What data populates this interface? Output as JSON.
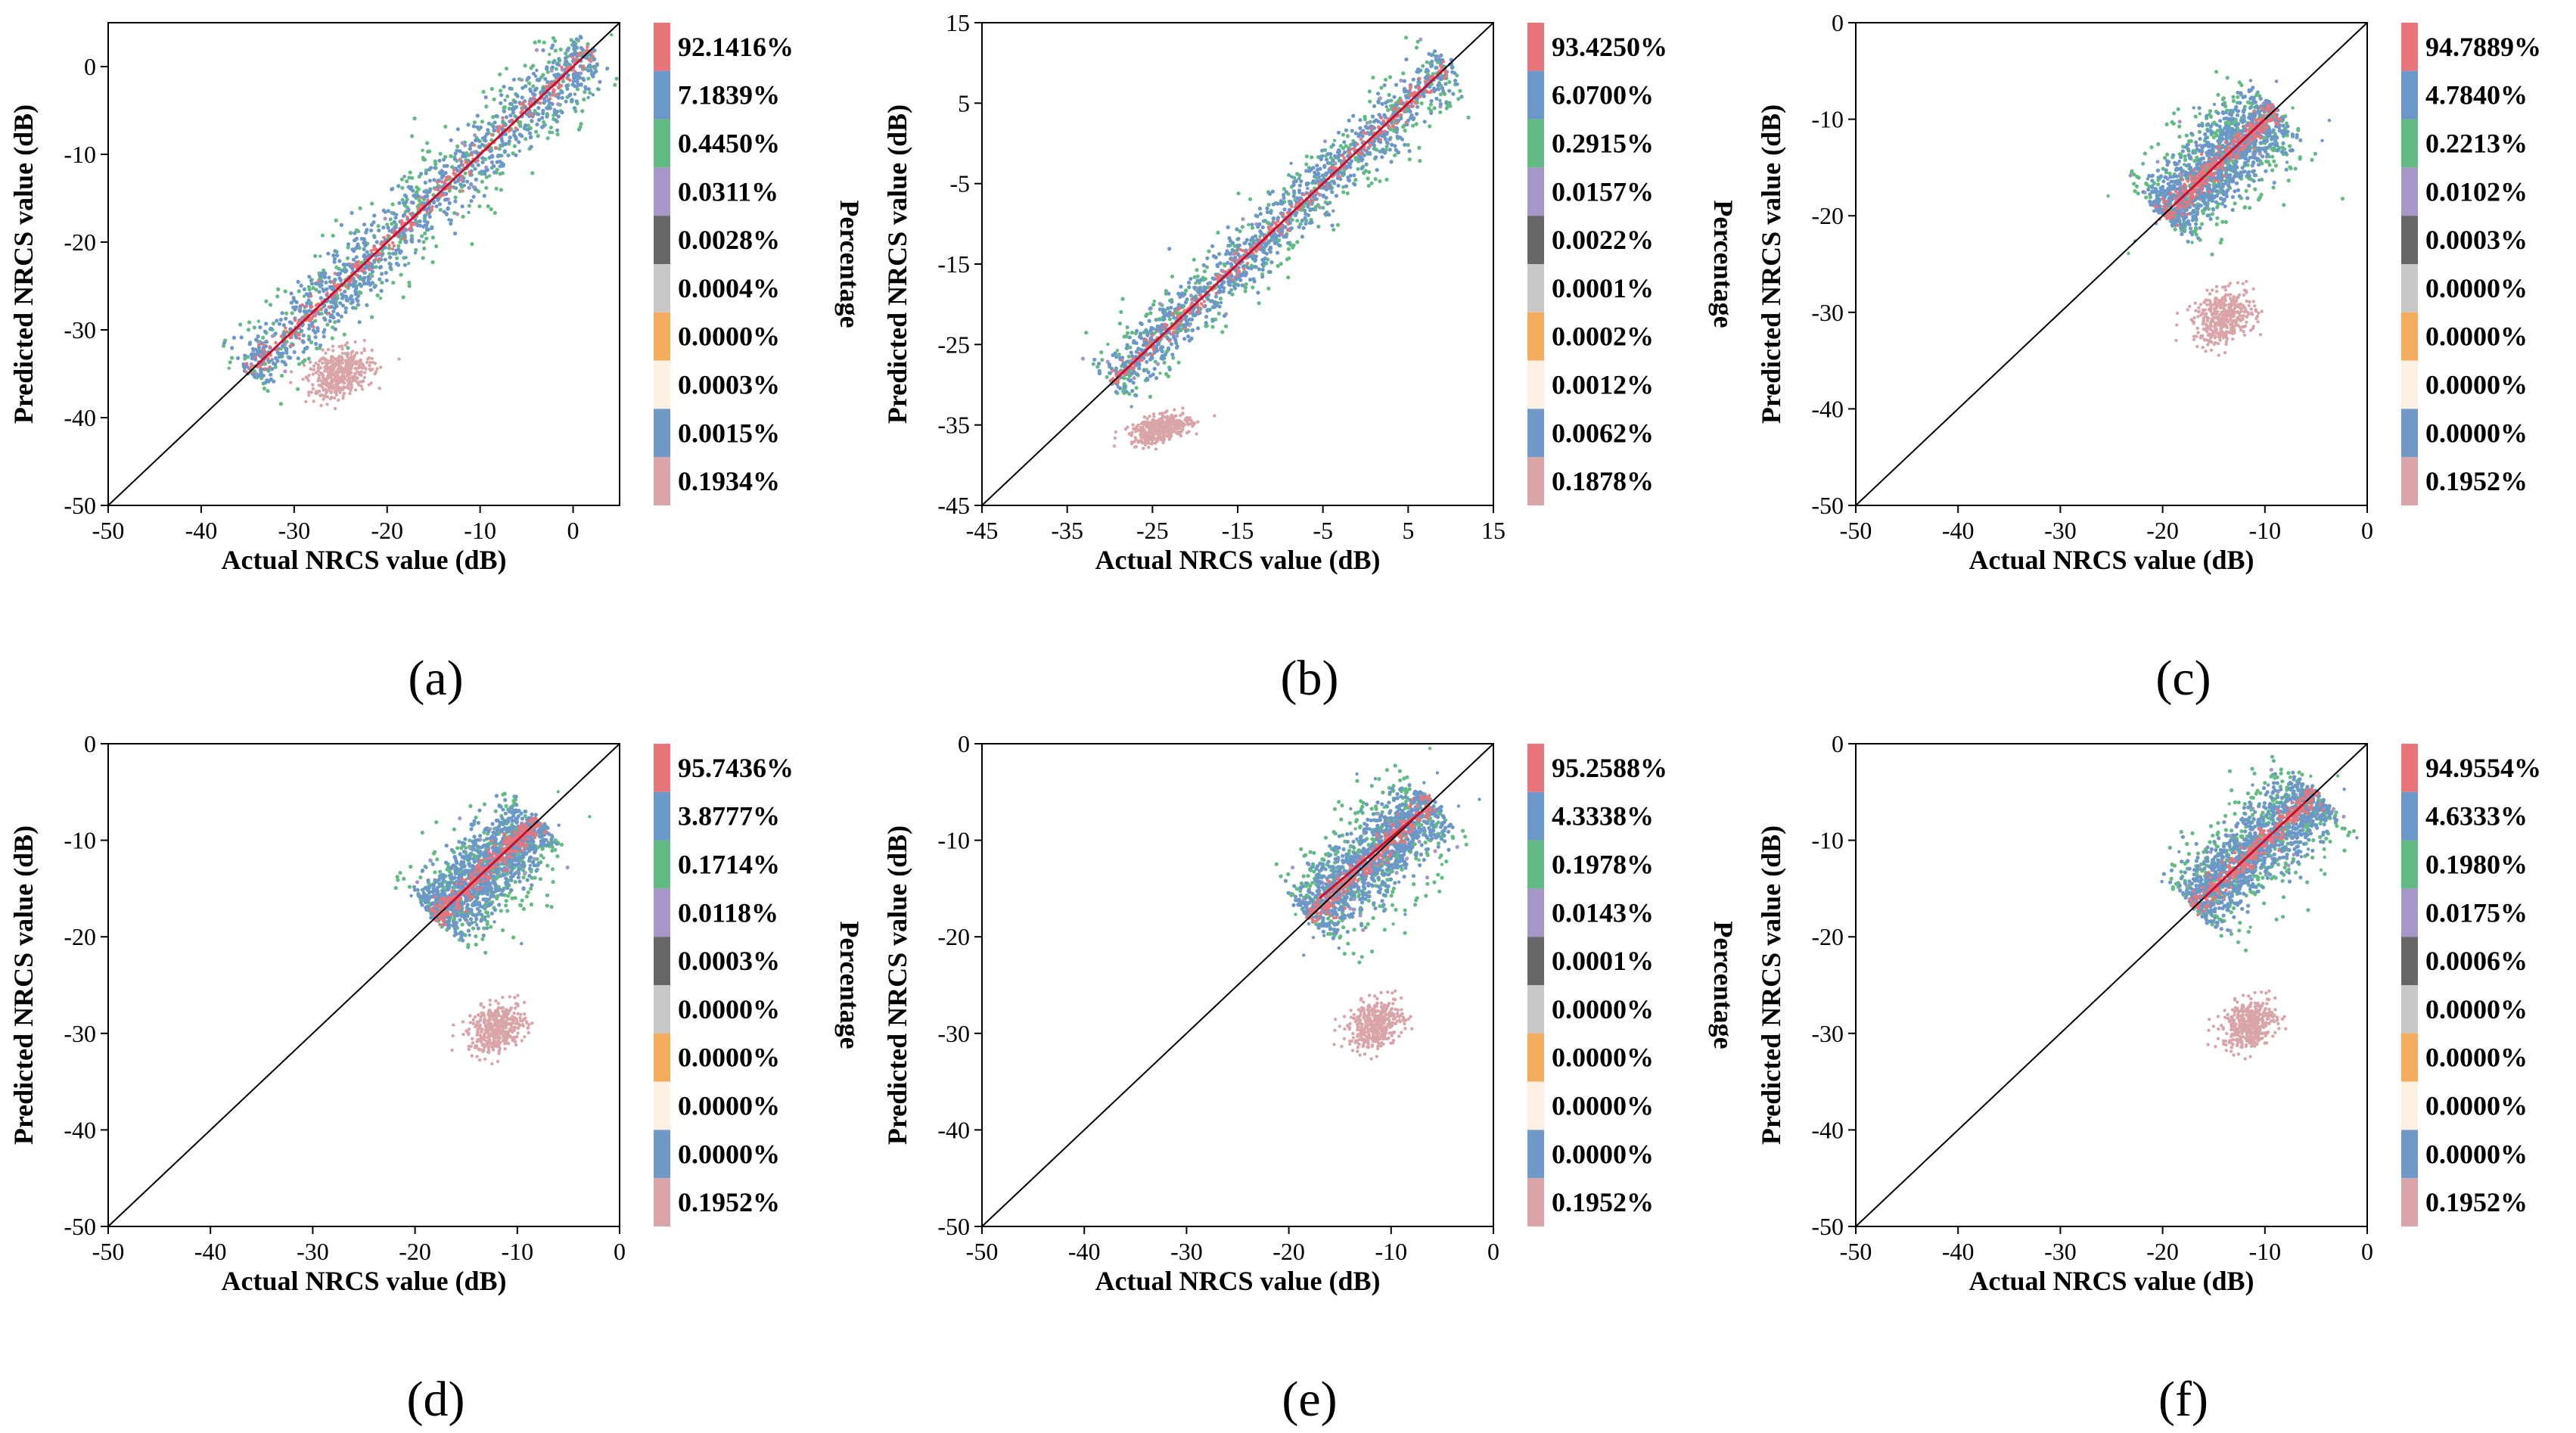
{
  "figure": {
    "xlabel": "Actual NRCS value (dB)",
    "ylabel": "Predicted NRCS value (dB)",
    "colorbar_label": "Percentage",
    "colorbar_colors": [
      "#e8757a",
      "#6b97c9",
      "#62bb82",
      "#a796c8",
      "#666666",
      "#c8c8c8",
      "#f4ad5c",
      "#fdf1e4",
      "#7199c7",
      "#d9a5a8"
    ]
  },
  "chart_data": [
    {
      "id": "a",
      "label": "(a)",
      "type": "scatter",
      "xlim": [
        -50,
        5
      ],
      "ylim": [
        -50,
        5
      ],
      "xticks": [
        -50,
        -40,
        -30,
        -20,
        -10,
        0
      ],
      "yticks": [
        -50,
        -40,
        -30,
        -20,
        -10,
        0
      ],
      "main_cluster": {
        "x_range": [
          -35,
          2
        ],
        "y_range": [
          -35,
          2
        ],
        "band": 1.6
      },
      "outlier_cluster": {
        "x_center": -25,
        "y_center": -35,
        "x_spread": 3.5,
        "y_spread": 2.6
      },
      "percentages": [
        "92.1416%",
        "7.1839%",
        "0.4450%",
        "0.0311%",
        "0.0028%",
        "0.0004%",
        "0.0000%",
        "0.0003%",
        "0.0015%",
        "0.1934%"
      ]
    },
    {
      "id": "b",
      "label": "(b)",
      "type": "scatter",
      "xlim": [
        -45,
        15
      ],
      "ylim": [
        -45,
        15
      ],
      "xticks": [
        -45,
        -35,
        -25,
        -15,
        -5,
        5,
        15
      ],
      "yticks": [
        -45,
        -35,
        -25,
        -15,
        -5,
        5,
        15
      ],
      "main_cluster": {
        "x_range": [
          -30,
          10
        ],
        "y_range": [
          -30,
          10
        ],
        "band": 1.5
      },
      "outlier_cluster": {
        "x_center": -24,
        "y_center": -35.5,
        "x_spread": 3.5,
        "y_spread": 1.6
      },
      "percentages": [
        "93.4250%",
        "6.0700%",
        "0.2915%",
        "0.0157%",
        "0.0022%",
        "0.0001%",
        "0.0002%",
        "0.0012%",
        "0.0062%",
        "0.1878%"
      ]
    },
    {
      "id": "c",
      "label": "(c)",
      "type": "scatter",
      "xlim": [
        -50,
        0
      ],
      "ylim": [
        -50,
        0
      ],
      "xticks": [
        -50,
        -40,
        -30,
        -20,
        -10,
        0
      ],
      "yticks": [
        -50,
        -40,
        -30,
        -20,
        -10,
        0
      ],
      "main_cluster": {
        "x_range": [
          -20,
          -9
        ],
        "y_range": [
          -20,
          -9
        ],
        "band": 1.8
      },
      "outlier_cluster": {
        "x_center": -14,
        "y_center": -30.5,
        "x_spread": 3.0,
        "y_spread": 2.6
      },
      "percentages": [
        "94.7889%",
        "4.7840%",
        "0.2213%",
        "0.0102%",
        "0.0003%",
        "0.0000%",
        "0.0000%",
        "0.0000%",
        "0.0000%",
        "0.1952%"
      ]
    },
    {
      "id": "d",
      "label": "(d)",
      "type": "scatter",
      "xlim": [
        -50,
        0
      ],
      "ylim": [
        -50,
        0
      ],
      "xticks": [
        -50,
        -40,
        -30,
        -20,
        -10,
        0
      ],
      "yticks": [
        -50,
        -40,
        -30,
        -20,
        -10,
        0
      ],
      "main_cluster": {
        "x_range": [
          -18,
          -8
        ],
        "y_range": [
          -18,
          -8
        ],
        "band": 1.7
      },
      "outlier_cluster": {
        "x_center": -12,
        "y_center": -29.5,
        "x_spread": 2.8,
        "y_spread": 2.4
      },
      "percentages": [
        "95.7436%",
        "3.8777%",
        "0.1714%",
        "0.0118%",
        "0.0003%",
        "0.0000%",
        "0.0000%",
        "0.0000%",
        "0.0000%",
        "0.1952%"
      ]
    },
    {
      "id": "e",
      "label": "(e)",
      "type": "scatter",
      "xlim": [
        -50,
        0
      ],
      "ylim": [
        -50,
        0
      ],
      "xticks": [
        -50,
        -40,
        -30,
        -20,
        -10,
        0
      ],
      "yticks": [
        -50,
        -40,
        -30,
        -20,
        -10,
        0
      ],
      "main_cluster": {
        "x_range": [
          -18,
          -6
        ],
        "y_range": [
          -17,
          -6
        ],
        "band": 1.7
      },
      "outlier_cluster": {
        "x_center": -11.5,
        "y_center": -29.0,
        "x_spread": 2.6,
        "y_spread": 2.4
      },
      "percentages": [
        "95.2588%",
        "4.3338%",
        "0.1978%",
        "0.0143%",
        "0.0001%",
        "0.0000%",
        "0.0000%",
        "0.0000%",
        "0.0000%",
        "0.1952%"
      ]
    },
    {
      "id": "f",
      "label": "(f)",
      "type": "scatter",
      "xlim": [
        -50,
        0
      ],
      "ylim": [
        -50,
        0
      ],
      "xticks": [
        -50,
        -40,
        -30,
        -20,
        -10,
        0
      ],
      "yticks": [
        -50,
        -40,
        -30,
        -20,
        -10,
        0
      ],
      "main_cluster": {
        "x_range": [
          -17,
          -5
        ],
        "y_range": [
          -17,
          -5
        ],
        "band": 1.7
      },
      "outlier_cluster": {
        "x_center": -11.5,
        "y_center": -29.0,
        "x_spread": 2.6,
        "y_spread": 2.4
      },
      "percentages": [
        "94.9554%",
        "4.6333%",
        "0.1980%",
        "0.0175%",
        "0.0006%",
        "0.0000%",
        "0.0000%",
        "0.0000%",
        "0.0000%",
        "0.1952%"
      ]
    }
  ]
}
